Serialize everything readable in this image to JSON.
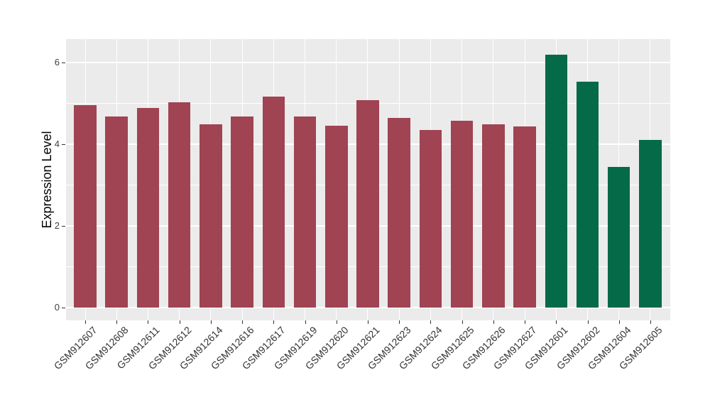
{
  "chart_data": {
    "type": "bar",
    "title": "",
    "xlabel": "",
    "ylabel": "Expression Level",
    "ylim": [
      0,
      6.5
    ],
    "yticks": [
      0,
      2,
      4,
      6
    ],
    "yminorticks": [
      1,
      3,
      5
    ],
    "grid": true,
    "legend": "none",
    "panel_background": "#EBEBEB",
    "gridline_color": "#FFFFFF",
    "categories": [
      "GSM912607",
      "GSM912608",
      "GSM912611",
      "GSM912612",
      "GSM912614",
      "GSM912616",
      "GSM912617",
      "GSM912619",
      "GSM912620",
      "GSM912621",
      "GSM912623",
      "GSM912624",
      "GSM912625",
      "GSM912626",
      "GSM912627",
      "GSM912601",
      "GSM912602",
      "GSM912604",
      "GSM912605"
    ],
    "values": [
      4.95,
      4.67,
      4.88,
      5.03,
      4.48,
      4.68,
      5.17,
      4.68,
      4.45,
      5.08,
      4.65,
      4.35,
      4.57,
      4.48,
      4.43,
      6.2,
      5.53,
      3.44,
      4.1
    ],
    "bar_colors": [
      "#A04352",
      "#A04352",
      "#A04352",
      "#A04352",
      "#A04352",
      "#A04352",
      "#A04352",
      "#A04352",
      "#A04352",
      "#A04352",
      "#A04352",
      "#A04352",
      "#A04352",
      "#A04352",
      "#A04352",
      "#046A47",
      "#046A47",
      "#046A47",
      "#046A47"
    ],
    "group_colors": {
      "maroon_group": "#A04352",
      "green_group": "#046A47"
    }
  }
}
